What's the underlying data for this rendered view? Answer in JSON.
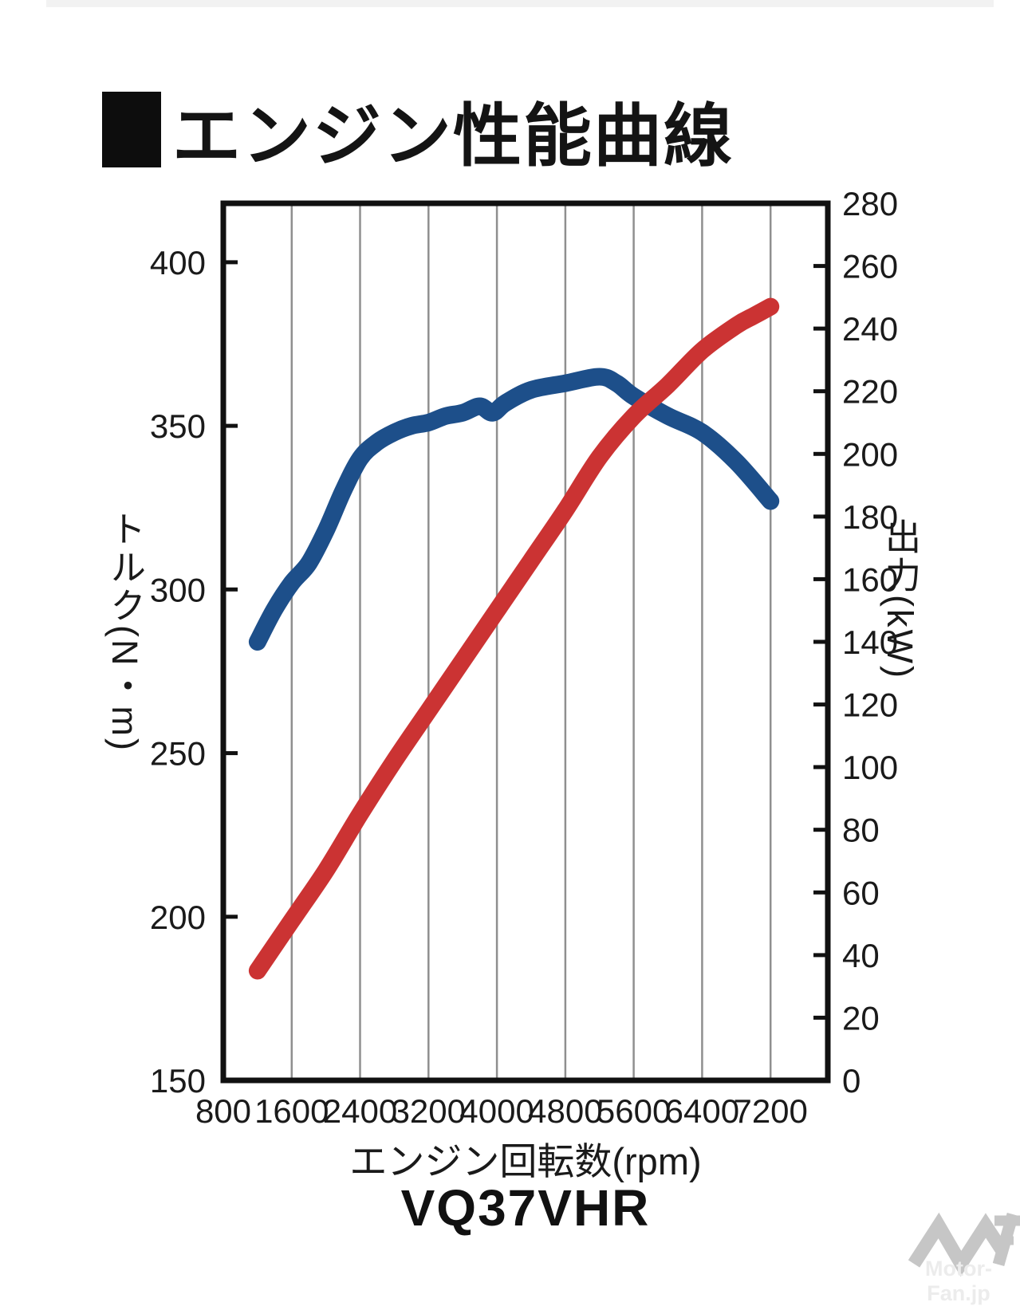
{
  "title": "エンジン性能曲線",
  "chart_data": {
    "type": "line",
    "title": "エンジン性能曲線",
    "engine_name": "VQ37VHR",
    "legend": "none",
    "grid": "vertical gridlines at every 800 rpm tick",
    "x_axis": {
      "label": "エンジン回転数(rpm)",
      "ticks": [
        800,
        1600,
        2400,
        3200,
        4000,
        4800,
        5600,
        6400,
        7200
      ],
      "range": [
        800,
        7870
      ]
    },
    "y_left_axis": {
      "label": "トルク(N・m)",
      "ticks": [
        150,
        200,
        250,
        300,
        350,
        400
      ],
      "range": [
        150,
        418
      ]
    },
    "y_right_axis": {
      "label": "出力(kW)",
      "ticks": [
        0,
        20,
        40,
        60,
        80,
        100,
        120,
        140,
        160,
        180,
        200,
        220,
        240,
        260,
        280
      ],
      "range": [
        0,
        280
      ]
    },
    "series": [
      {
        "name": "トルク",
        "unit": "N・m",
        "axis": "left",
        "color": "#1d4f8a",
        "points": [
          [
            1200,
            284
          ],
          [
            1400,
            294
          ],
          [
            1600,
            302
          ],
          [
            1800,
            308
          ],
          [
            2000,
            318
          ],
          [
            2200,
            330
          ],
          [
            2400,
            340
          ],
          [
            2600,
            345
          ],
          [
            2800,
            348
          ],
          [
            3000,
            350
          ],
          [
            3200,
            351
          ],
          [
            3400,
            353
          ],
          [
            3600,
            354
          ],
          [
            3800,
            356
          ],
          [
            3950,
            354
          ],
          [
            4100,
            357
          ],
          [
            4400,
            361
          ],
          [
            4800,
            363
          ],
          [
            5200,
            365
          ],
          [
            5400,
            363
          ],
          [
            5600,
            359
          ],
          [
            6000,
            353
          ],
          [
            6400,
            348
          ],
          [
            6800,
            339
          ],
          [
            7200,
            327
          ]
        ]
      },
      {
        "name": "出力",
        "unit": "kW",
        "axis": "right",
        "color": "#cb3333",
        "points": [
          [
            1200,
            35
          ],
          [
            1600,
            51
          ],
          [
            2000,
            67
          ],
          [
            2400,
            85
          ],
          [
            2800,
            102
          ],
          [
            3200,
            118
          ],
          [
            3600,
            134
          ],
          [
            4000,
            150
          ],
          [
            4400,
            166
          ],
          [
            4800,
            182
          ],
          [
            5200,
            199
          ],
          [
            5600,
            212
          ],
          [
            6000,
            222
          ],
          [
            6400,
            233
          ],
          [
            6800,
            241
          ],
          [
            7000,
            244
          ],
          [
            7200,
            247
          ]
        ]
      }
    ]
  },
  "watermark": {
    "text": "Motor-Fan.jp"
  },
  "colors": {
    "torque_curve": "#1d4f8a",
    "power_curve": "#cb3333",
    "gridline": "#8f8f8f",
    "axis": "#111111",
    "watermark_logo": "#c6c6c6",
    "watermark_text": "#ececec"
  }
}
